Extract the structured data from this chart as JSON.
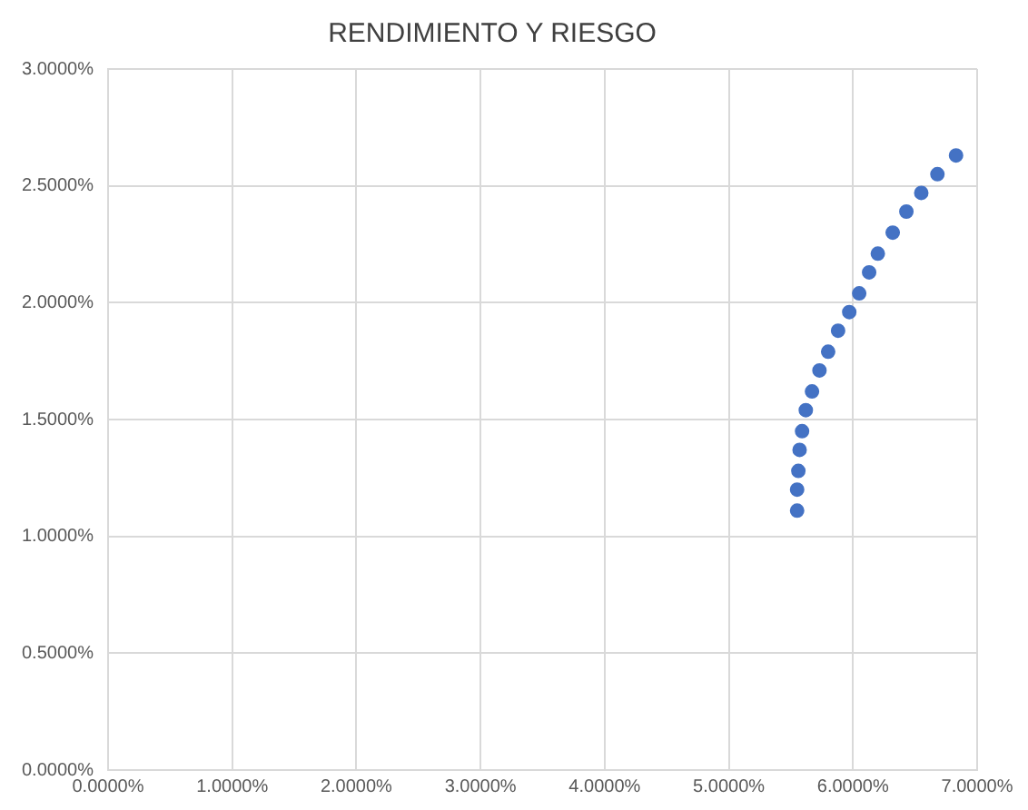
{
  "chart_data": {
    "type": "scatter",
    "title": "RENDIMIENTO Y RIESGO",
    "x": [
      5.55,
      5.55,
      5.56,
      5.57,
      5.59,
      5.62,
      5.67,
      5.73,
      5.8,
      5.88,
      5.97,
      6.05,
      6.13,
      6.2,
      6.32,
      6.43,
      6.55,
      6.68,
      6.83
    ],
    "series": [
      {
        "color": "#4472c4",
        "values": [
          1.11,
          1.2,
          1.28,
          1.37,
          1.45,
          1.54,
          1.62,
          1.71,
          1.79,
          1.88,
          1.96,
          2.04,
          2.13,
          2.21,
          2.3,
          2.39,
          2.47,
          2.55,
          2.63
        ]
      }
    ],
    "xlim": [
      0,
      7
    ],
    "ylim": [
      0,
      3
    ],
    "xticks": [
      {
        "value": 0,
        "label": "0.0000%"
      },
      {
        "value": 1,
        "label": "1.0000%"
      },
      {
        "value": 2,
        "label": "2.0000%"
      },
      {
        "value": 3,
        "label": "3.0000%"
      },
      {
        "value": 4,
        "label": "4.0000%"
      },
      {
        "value": 5,
        "label": "5.0000%"
      },
      {
        "value": 6,
        "label": "6.0000%"
      },
      {
        "value": 7,
        "label": "7.0000%"
      }
    ],
    "yticks": [
      {
        "value": 0,
        "label": "0.0000%"
      },
      {
        "value": 0.5,
        "label": "0.5000%"
      },
      {
        "value": 1,
        "label": "1.0000%"
      },
      {
        "value": 1.5,
        "label": "1.5000%"
      },
      {
        "value": 2,
        "label": "2.0000%"
      },
      {
        "value": 2.5,
        "label": "2.5000%"
      },
      {
        "value": 3,
        "label": "3.0000%"
      }
    ],
    "grid": true,
    "legend": false,
    "marker": "circle"
  }
}
